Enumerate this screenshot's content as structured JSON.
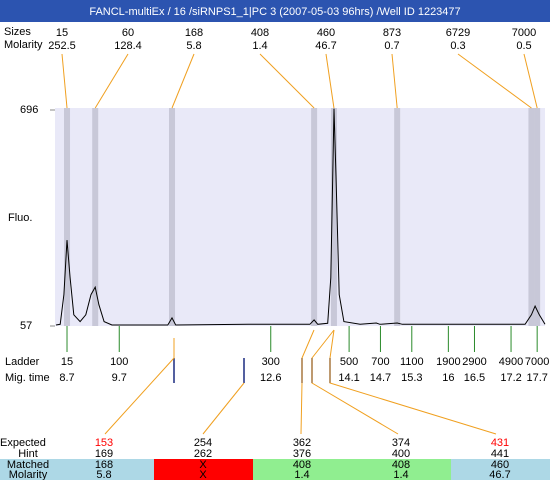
{
  "title": "FANCL-multiEx / 16 /siRNPS1_1|PC 3 (2007-05-03 96hrs) /Well ID 1223477",
  "peaks_table": {
    "size_label": "Sizes",
    "molarity_label": "Molarity",
    "sizes": [
      15,
      60,
      168,
      408,
      460,
      873,
      6729,
      7000
    ],
    "molarity": [
      "252.5",
      "128.4",
      "5.8",
      "1.4",
      "46.7",
      "0.7",
      "0.3",
      "0.5"
    ]
  },
  "chart_data": {
    "type": "line",
    "ylabel": "Fluo.",
    "color": "#000000",
    "xlim": [
      8.47,
      17.85
    ],
    "ylim": [
      57,
      696
    ],
    "yticks": [
      57,
      696
    ],
    "x": [
      8.49,
      8.57,
      8.64,
      8.7,
      8.76,
      8.83,
      8.95,
      9.06,
      9.16,
      9.24,
      9.31,
      9.41,
      9.56,
      10.63,
      10.71,
      10.78,
      12.17,
      13.35,
      13.43,
      13.5,
      13.69,
      13.75,
      13.81,
      13.85,
      13.91,
      14.0,
      14.31,
      14.62,
      14.69,
      15.02,
      15.12,
      17.47,
      17.59,
      17.66,
      17.74,
      17.85
    ],
    "values": [
      60,
      62,
      150,
      311,
      200,
      90,
      70,
      90,
      150,
      172,
      120,
      70,
      60,
      60,
      81,
      60,
      62,
      62,
      75,
      62,
      65,
      200,
      700,
      500,
      150,
      70,
      62,
      66,
      62,
      66,
      62,
      62,
      90,
      116,
      90,
      62
    ],
    "peak_times": [
      8.7,
      9.24,
      10.71,
      13.43,
      13.81,
      15.02,
      17.59,
      17.7
    ],
    "ladder": {
      "label": "Ladder",
      "time_label": "Mig. time",
      "color": "#2a8a2a",
      "sizes": [
        15,
        100,
        300,
        500,
        700,
        1100,
        1900,
        2900,
        4900,
        7000
      ],
      "times": [
        8.7,
        9.7,
        12.6,
        14.1,
        14.7,
        15.3,
        16,
        16.5,
        17.2,
        17.7
      ]
    }
  },
  "expected_table": {
    "labels": [
      "Expected",
      "Hint",
      "Matched",
      "Molarity"
    ],
    "expected": [
      153,
      254,
      362,
      374,
      431
    ],
    "expected_colors": [
      "#ff0000",
      "#000000",
      "#000000",
      "#000000",
      "#ff0000"
    ],
    "hint": [
      169,
      262,
      376,
      400,
      441
    ],
    "matched": [
      "168",
      "X",
      "408",
      "408",
      "460"
    ],
    "molarity": [
      "5.8",
      "X",
      "1.4",
      "1.4",
      "46.7"
    ],
    "cell_colors": [
      "#add8e6",
      "#ff0000",
      "#90ee90",
      "#90ee90",
      "#add8e6"
    ]
  }
}
